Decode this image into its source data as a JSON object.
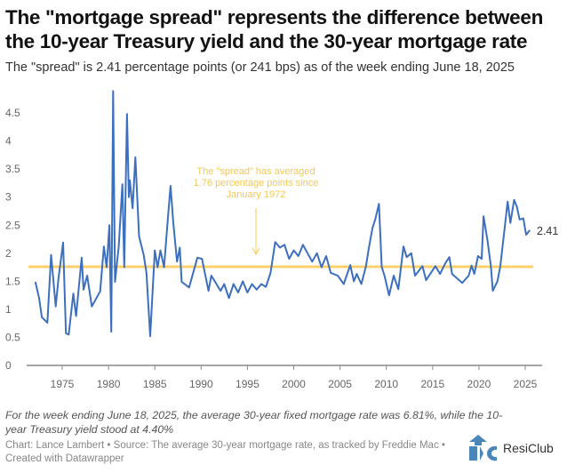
{
  "header": {
    "title": "The \"mortgage spread\" represents the difference between the 10-year Treasury yield and the 30-year mortgage rate",
    "subtitle": "The \"spread\" is 2.41 percentage points (or 241 bps) as of the week ending June 18, 2025"
  },
  "chart_data": {
    "type": "line",
    "ylim": [
      0,
      4.8
    ],
    "xlim": [
      1971.5,
      2026.5
    ],
    "yticks": [
      "0",
      "0.5",
      "1",
      "1.5",
      "2",
      "2.5",
      "3",
      "3.5",
      "4",
      "4.5"
    ],
    "ytick_values": [
      0,
      0.5,
      1,
      1.5,
      2,
      2.5,
      3,
      3.5,
      4,
      4.5
    ],
    "xticks": [
      "1975",
      "1980",
      "1985",
      "1990",
      "1995",
      "2000",
      "2005",
      "2010",
      "2015",
      "2020",
      "2025"
    ],
    "xtick_values": [
      1975,
      1980,
      1985,
      1990,
      1995,
      2000,
      2005,
      2010,
      2015,
      2020,
      2025
    ],
    "average": 1.76,
    "annotation": [
      "The \"spread\" has averaged",
      "1.76 percentage points since",
      "January 1972"
    ],
    "end_label": "2.41",
    "colors": {
      "line": "#3d6fbf",
      "average": "#fcd06a",
      "annotation": "#f7c84f"
    },
    "series": [
      {
        "name": "Mortgage spread",
        "points": [
          [
            1972.1,
            1.49
          ],
          [
            1972.5,
            1.2
          ],
          [
            1972.8,
            0.86
          ],
          [
            1973.4,
            0.76
          ],
          [
            1973.8,
            1.97
          ],
          [
            1974.3,
            1.05
          ],
          [
            1974.6,
            1.55
          ],
          [
            1975.1,
            2.19
          ],
          [
            1975.4,
            0.57
          ],
          [
            1975.7,
            0.55
          ],
          [
            1976.2,
            1.28
          ],
          [
            1976.5,
            0.88
          ],
          [
            1977.1,
            1.92
          ],
          [
            1977.3,
            1.35
          ],
          [
            1977.7,
            1.6
          ],
          [
            1978.2,
            1.05
          ],
          [
            1979.1,
            1.32
          ],
          [
            1979.5,
            2.12
          ],
          [
            1979.8,
            1.75
          ],
          [
            1980.1,
            2.5
          ],
          [
            1980.3,
            0.6
          ],
          [
            1980.5,
            4.89
          ],
          [
            1980.7,
            1.49
          ],
          [
            1981.1,
            2.12
          ],
          [
            1981.5,
            3.23
          ],
          [
            1981.7,
            1.75
          ],
          [
            1982.0,
            4.48
          ],
          [
            1982.2,
            3.0
          ],
          [
            1982.3,
            3.3
          ],
          [
            1982.6,
            2.8
          ],
          [
            1982.9,
            3.71
          ],
          [
            1983.3,
            2.3
          ],
          [
            1983.8,
            1.97
          ],
          [
            1984.1,
            1.65
          ],
          [
            1984.5,
            0.52
          ],
          [
            1985.0,
            2.05
          ],
          [
            1985.3,
            1.75
          ],
          [
            1985.6,
            2.05
          ],
          [
            1986.0,
            1.75
          ],
          [
            1986.4,
            2.6
          ],
          [
            1986.7,
            3.2
          ],
          [
            1987.0,
            2.54
          ],
          [
            1987.4,
            1.85
          ],
          [
            1987.7,
            2.1
          ],
          [
            1987.9,
            1.49
          ],
          [
            1988.7,
            1.39
          ],
          [
            1989.6,
            1.92
          ],
          [
            1990.1,
            1.9
          ],
          [
            1990.4,
            1.65
          ],
          [
            1990.8,
            1.33
          ],
          [
            1991.1,
            1.6
          ],
          [
            1992.1,
            1.33
          ],
          [
            1992.5,
            1.45
          ],
          [
            1993.0,
            1.2
          ],
          [
            1993.5,
            1.45
          ],
          [
            1994.0,
            1.3
          ],
          [
            1994.5,
            1.5
          ],
          [
            1995.0,
            1.3
          ],
          [
            1995.5,
            1.45
          ],
          [
            1996.0,
            1.35
          ],
          [
            1996.5,
            1.45
          ],
          [
            1997.0,
            1.4
          ],
          [
            1997.5,
            1.65
          ],
          [
            1998.0,
            2.2
          ],
          [
            1998.5,
            2.1
          ],
          [
            1999.0,
            2.15
          ],
          [
            1999.5,
            1.9
          ],
          [
            2000.0,
            2.05
          ],
          [
            2000.5,
            1.95
          ],
          [
            2001.0,
            2.15
          ],
          [
            2001.5,
            2.0
          ],
          [
            2002.0,
            1.85
          ],
          [
            2002.5,
            2.0
          ],
          [
            2003.0,
            1.75
          ],
          [
            2003.5,
            1.95
          ],
          [
            2004.0,
            1.65
          ],
          [
            2004.75,
            1.6
          ],
          [
            2005.4,
            1.45
          ],
          [
            2006.1,
            1.79
          ],
          [
            2006.5,
            1.5
          ],
          [
            2006.8,
            1.63
          ],
          [
            2007.3,
            1.45
          ],
          [
            2007.8,
            1.77
          ],
          [
            2008.1,
            2.08
          ],
          [
            2008.5,
            2.45
          ],
          [
            2008.8,
            2.6
          ],
          [
            2009.2,
            2.88
          ],
          [
            2009.5,
            1.76
          ],
          [
            2009.8,
            1.6
          ],
          [
            2010.3,
            1.25
          ],
          [
            2010.8,
            1.6
          ],
          [
            2011.3,
            1.36
          ],
          [
            2011.85,
            2.12
          ],
          [
            2012.2,
            1.93
          ],
          [
            2012.7,
            2.0
          ],
          [
            2013.1,
            1.6
          ],
          [
            2013.9,
            1.77
          ],
          [
            2014.3,
            1.52
          ],
          [
            2015.3,
            1.77
          ],
          [
            2015.8,
            1.63
          ],
          [
            2016.4,
            1.83
          ],
          [
            2016.8,
            1.93
          ],
          [
            2017.1,
            1.63
          ],
          [
            2018.2,
            1.47
          ],
          [
            2018.9,
            1.6
          ],
          [
            2019.2,
            1.78
          ],
          [
            2019.5,
            1.63
          ],
          [
            2019.9,
            1.95
          ],
          [
            2020.3,
            1.9
          ],
          [
            2020.5,
            2.66
          ],
          [
            2020.95,
            2.2
          ],
          [
            2021.3,
            1.76
          ],
          [
            2021.5,
            1.33
          ],
          [
            2022.0,
            1.5
          ],
          [
            2022.3,
            1.76
          ],
          [
            2022.7,
            2.33
          ],
          [
            2023.1,
            2.92
          ],
          [
            2023.4,
            2.54
          ],
          [
            2023.8,
            2.95
          ],
          [
            2024.1,
            2.83
          ],
          [
            2024.4,
            2.6
          ],
          [
            2024.8,
            2.62
          ],
          [
            2025.1,
            2.33
          ],
          [
            2025.5,
            2.41
          ]
        ]
      }
    ]
  },
  "footer": {
    "note": "For the week ending June 18, 2025, the average 30-year fixed mortgage rate was 6.81%, while the 10-year Treasury yield stood at 4.40%",
    "credit": "Chart: Lance Lambert • Source: The average 30-year mortgage rate, as tracked by Freddie Mac • Created with Datawrapper",
    "logo_text": "ResiClub"
  }
}
